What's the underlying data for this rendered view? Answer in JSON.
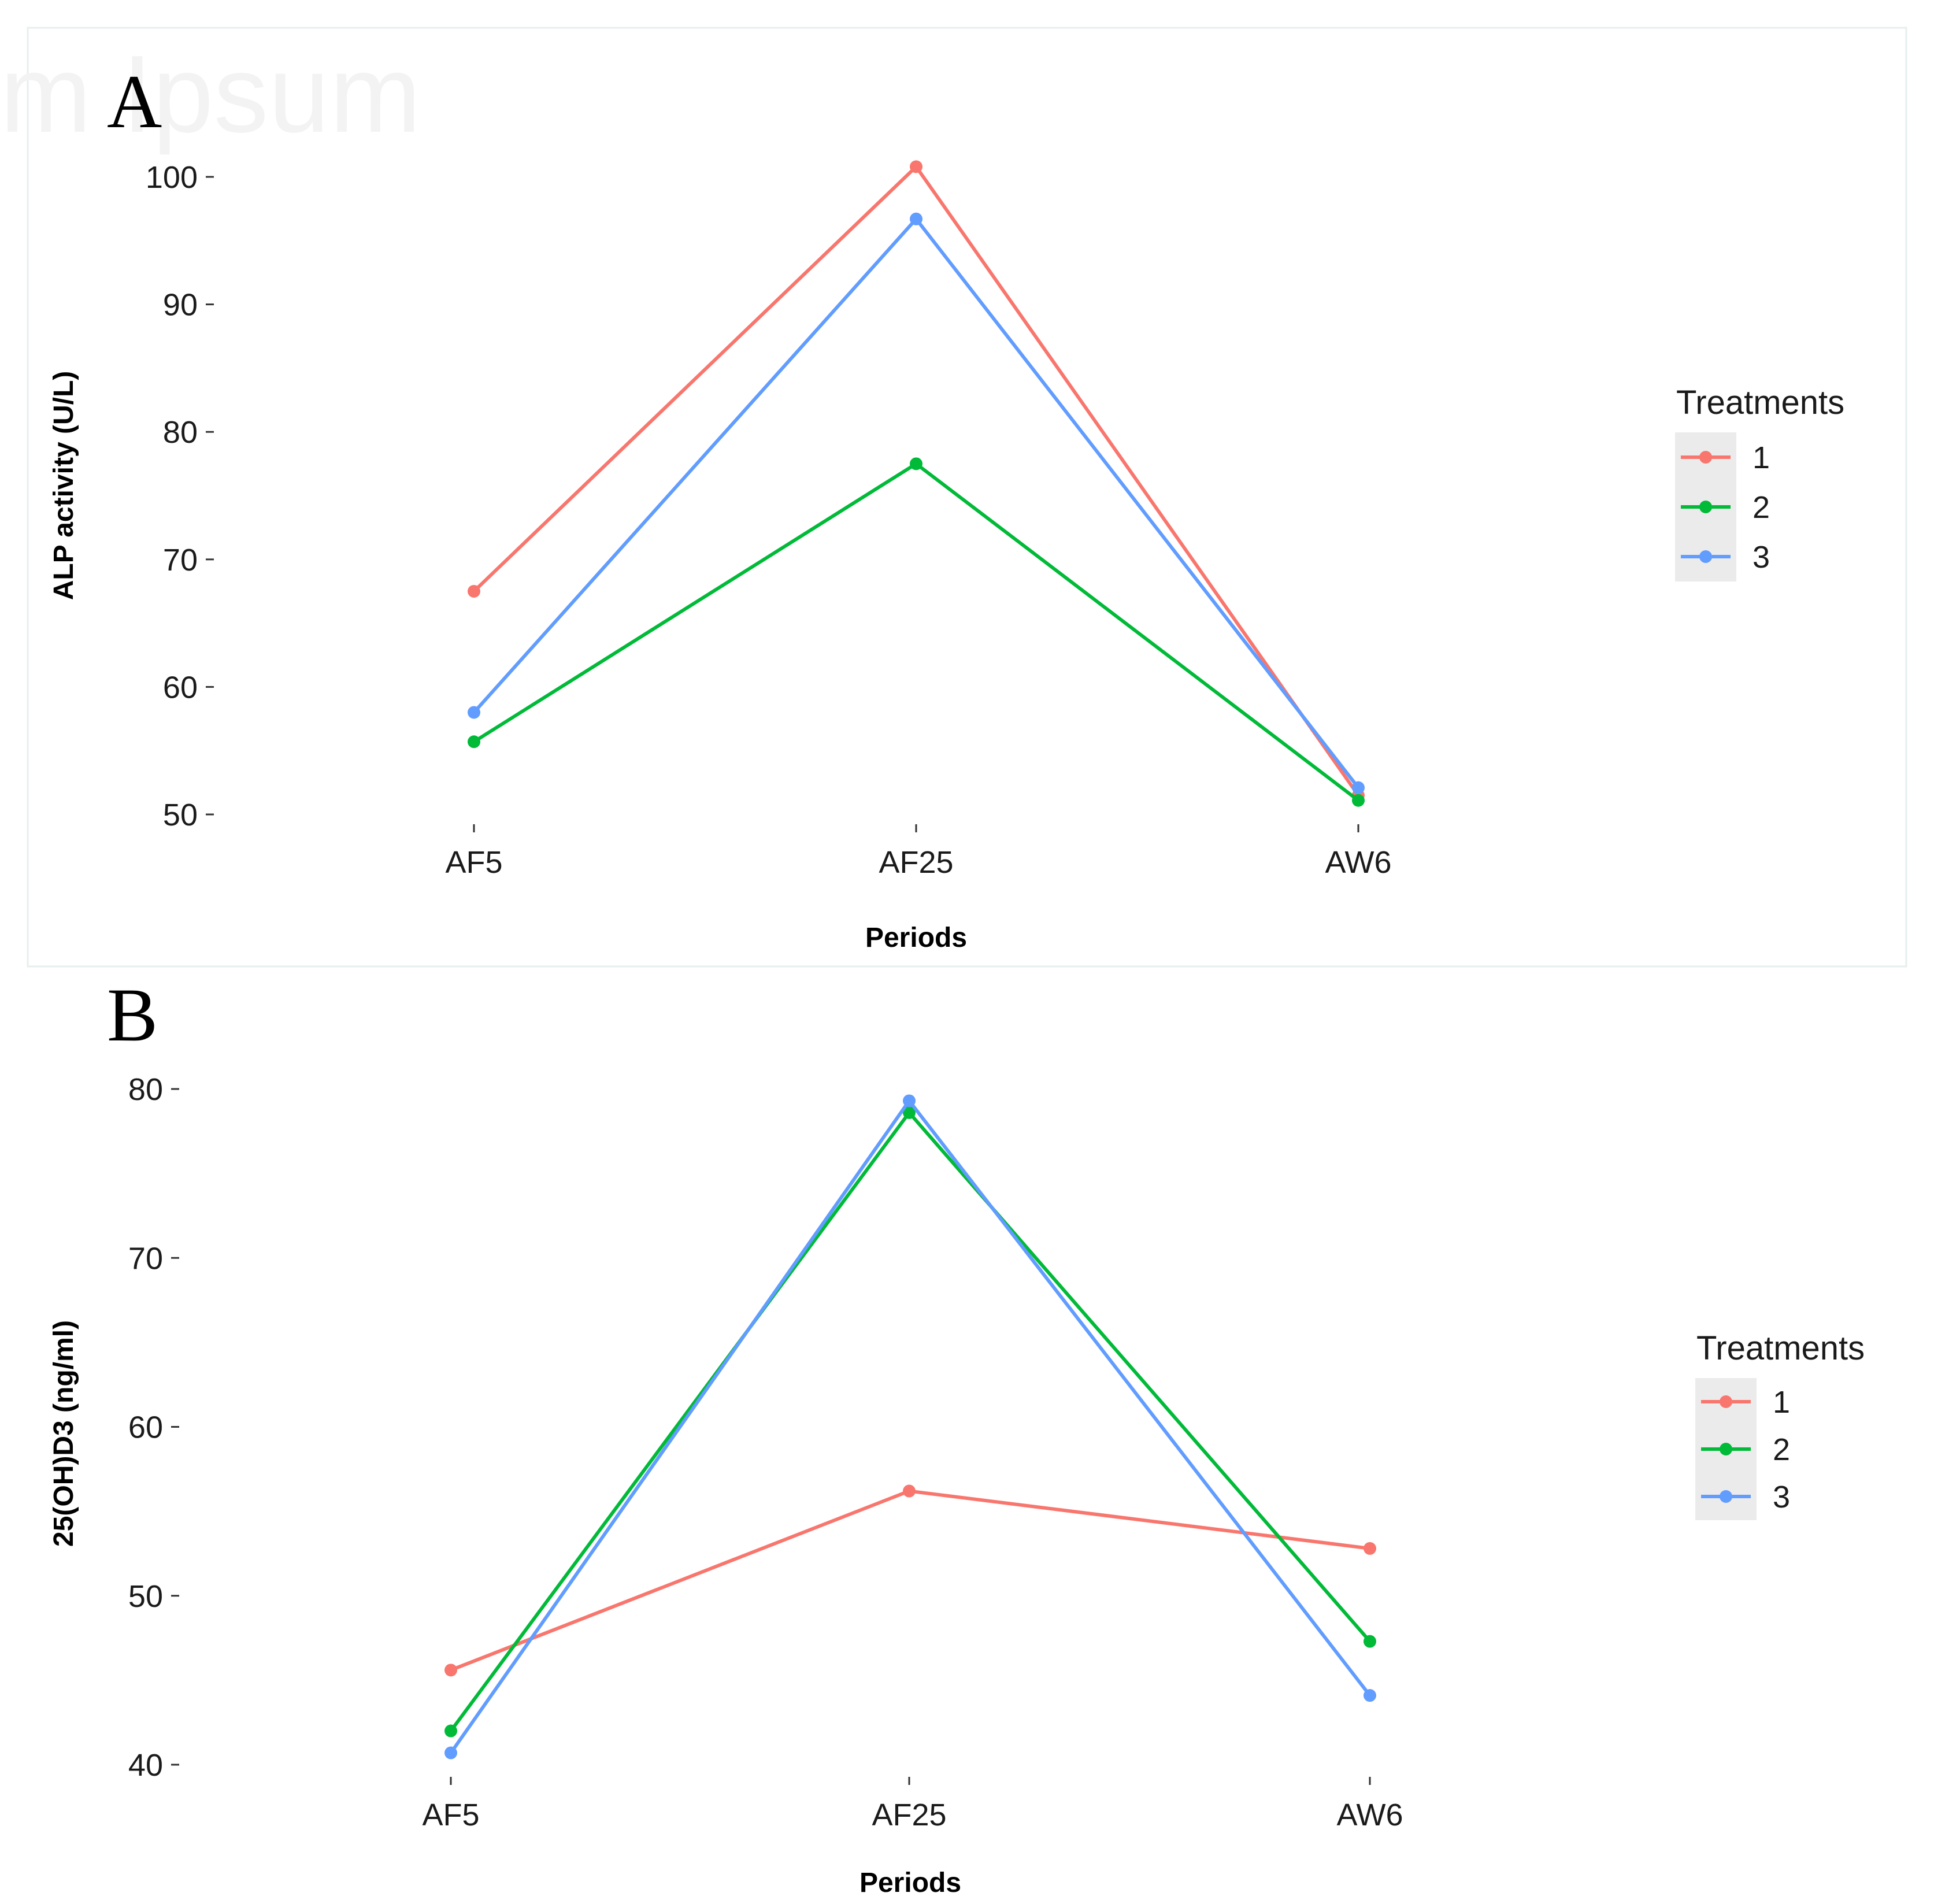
{
  "watermark": "m Ipsum",
  "chart_data": [
    {
      "type": "line",
      "panel": "A",
      "xlabel": "Periods",
      "ylabel": "ALP activity (U/L)",
      "categories": [
        "AF5",
        "AF25",
        "AW6"
      ],
      "yticks": [
        50,
        60,
        70,
        80,
        90,
        100
      ],
      "ylim": [
        48,
        101
      ],
      "legend_title": "Treatments",
      "legend_position": "right",
      "series": [
        {
          "name": "1",
          "color": "#F8766D",
          "values": [
            67.5,
            100.8,
            51.5
          ]
        },
        {
          "name": "2",
          "color": "#00BA38",
          "values": [
            55.7,
            77.5,
            51.1
          ]
        },
        {
          "name": "3",
          "color": "#619CFF",
          "values": [
            58.0,
            96.7,
            52.1
          ]
        }
      ]
    },
    {
      "type": "line",
      "panel": "B",
      "xlabel": "Periods",
      "ylabel": "25(OH)D3 (ng/ml)",
      "categories": [
        "AF5",
        "AF25",
        "AW6"
      ],
      "yticks": [
        40,
        50,
        60,
        70,
        80
      ],
      "ylim": [
        39,
        80.5
      ],
      "legend_title": "Treatments",
      "legend_position": "right",
      "series": [
        {
          "name": "1",
          "color": "#F8766D",
          "values": [
            45.6,
            56.2,
            52.8
          ]
        },
        {
          "name": "2",
          "color": "#00BA38",
          "values": [
            42.0,
            78.6,
            47.3
          ]
        },
        {
          "name": "3",
          "color": "#619CFF",
          "values": [
            40.7,
            79.3,
            44.1
          ]
        }
      ]
    }
  ]
}
